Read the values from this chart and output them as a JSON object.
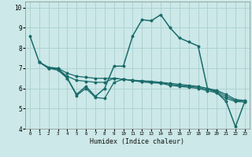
{
  "xlabel": "Humidex (Indice chaleur)",
  "bg_color": "#cce8e8",
  "grid_color": "#aacece",
  "line_color": "#1a6b6b",
  "xlim": [
    -0.5,
    23.5
  ],
  "ylim": [
    4,
    10.3
  ],
  "x_ticks": [
    0,
    1,
    2,
    3,
    4,
    5,
    6,
    7,
    8,
    9,
    10,
    11,
    12,
    13,
    14,
    15,
    16,
    17,
    18,
    19,
    20,
    21,
    22,
    23
  ],
  "y_ticks": [
    4,
    5,
    6,
    7,
    8,
    9,
    10
  ],
  "line1_x": [
    0,
    1,
    2,
    3,
    4,
    5,
    6,
    7,
    8,
    9,
    10,
    11,
    12,
    13,
    14,
    15,
    16,
    17,
    18,
    19,
    20,
    21,
    22,
    23
  ],
  "line1_y": [
    8.6,
    7.3,
    7.0,
    7.0,
    6.5,
    5.7,
    6.1,
    5.6,
    6.0,
    7.1,
    7.1,
    8.6,
    9.4,
    9.35,
    9.65,
    9.0,
    8.5,
    8.3,
    8.1,
    6.0,
    5.8,
    5.35,
    4.1,
    5.35
  ],
  "line2_x": [
    1,
    2,
    3,
    4,
    5,
    6,
    7,
    8,
    9,
    10,
    11,
    12,
    13,
    14,
    15,
    16,
    17,
    18,
    19,
    20,
    21,
    22,
    23
  ],
  "line2_y": [
    7.3,
    7.05,
    7.0,
    6.75,
    6.6,
    6.55,
    6.5,
    6.5,
    6.5,
    6.45,
    6.4,
    6.38,
    6.35,
    6.3,
    6.25,
    6.2,
    6.15,
    6.1,
    6.0,
    5.9,
    5.7,
    5.45,
    5.4
  ],
  "line3_x": [
    1,
    2,
    3,
    4,
    5,
    6,
    7,
    8,
    9,
    10,
    11,
    12,
    13,
    14,
    15,
    16,
    17,
    18,
    19,
    20,
    21,
    22,
    23
  ],
  "line3_y": [
    7.3,
    7.0,
    6.95,
    6.6,
    6.4,
    6.35,
    6.3,
    6.3,
    6.5,
    6.45,
    6.4,
    6.35,
    6.3,
    6.28,
    6.2,
    6.15,
    6.1,
    6.05,
    5.95,
    5.85,
    5.6,
    5.4,
    5.35
  ],
  "line4_x": [
    2,
    3,
    4,
    5,
    6,
    7,
    8,
    9,
    10,
    11,
    12,
    13,
    14,
    15,
    16,
    17,
    18,
    19,
    20,
    21,
    22,
    23
  ],
  "line4_y": [
    7.0,
    6.9,
    6.5,
    5.65,
    6.0,
    5.55,
    5.5,
    6.3,
    6.45,
    6.38,
    6.32,
    6.28,
    6.25,
    6.15,
    6.1,
    6.05,
    6.0,
    5.88,
    5.78,
    5.5,
    5.35,
    5.32
  ]
}
